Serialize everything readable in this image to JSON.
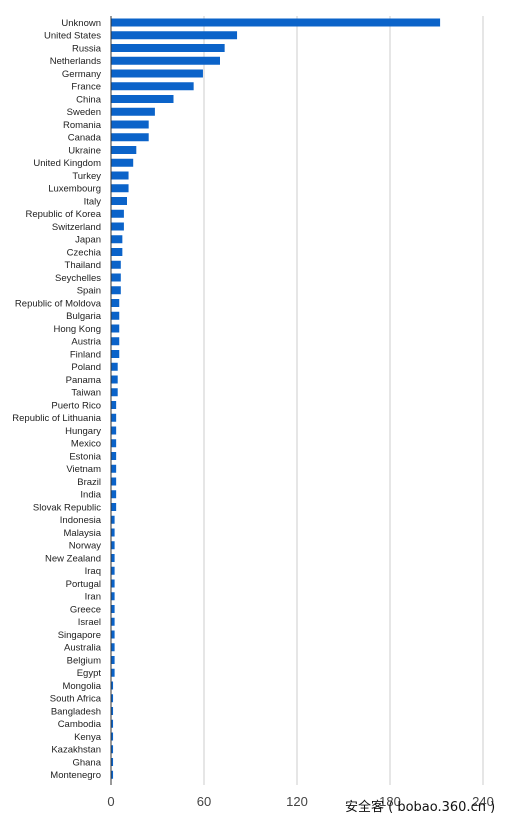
{
  "chart_data": {
    "type": "bar",
    "orientation": "horizontal",
    "categories": [
      "Unknown",
      "United States",
      "Russia",
      "Netherlands",
      "Germany",
      "France",
      "China",
      "Sweden",
      "Romania",
      "Canada",
      "Ukraine",
      "United Kingdom",
      "Turkey",
      "Luxembourg",
      "Italy",
      "Republic of Korea",
      "Switzerland",
      "Japan",
      "Czechia",
      "Thailand",
      "Seychelles",
      "Spain",
      "Republic of Moldova",
      "Bulgaria",
      "Hong Kong",
      "Austria",
      "Finland",
      "Poland",
      "Panama",
      "Taiwan",
      "Puerto Rico",
      "Republic of Lithuania",
      "Hungary",
      "Mexico",
      "Estonia",
      "Vietnam",
      "Brazil",
      "India",
      "Slovak Republic",
      "Indonesia",
      "Malaysia",
      "Norway",
      "New Zealand",
      "Iraq",
      "Portugal",
      "Iran",
      "Greece",
      "Israel",
      "Singapore",
      "Australia",
      "Belgium",
      "Egypt",
      "Mongolia",
      "South Africa",
      "Bangladesh",
      "Cambodia",
      "Kenya",
      "Kazakhstan",
      "Ghana",
      "Montenegro"
    ],
    "values": [
      212,
      81,
      73,
      70,
      59,
      53,
      40,
      28,
      24,
      24,
      16,
      14,
      11,
      11,
      10,
      8,
      8,
      7,
      7,
      6,
      6,
      6,
      5,
      5,
      5,
      5,
      5,
      4,
      4,
      4,
      3,
      3,
      3,
      3,
      3,
      3,
      3,
      3,
      3,
      2,
      2,
      2,
      2,
      2,
      2,
      2,
      2,
      2,
      2,
      2,
      2,
      2,
      1,
      1,
      1,
      1,
      1,
      1,
      1,
      1
    ],
    "xlim": [
      0,
      240
    ],
    "x_ticks": [
      "0",
      "60",
      "120",
      "180",
      "240"
    ],
    "grid": true,
    "bar_color": "#0b63c9",
    "grid_color": "#cccccc",
    "title": "",
    "xlabel": "",
    "ylabel": ""
  },
  "watermark": "安全客 ( bobao.360.cn )"
}
